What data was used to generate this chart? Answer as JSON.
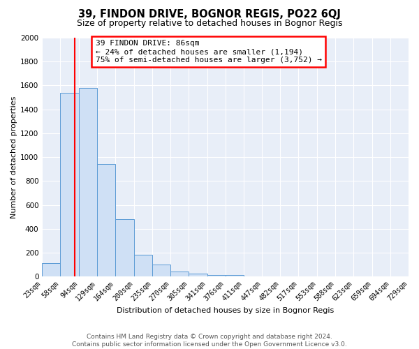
{
  "title": "39, FINDON DRIVE, BOGNOR REGIS, PO22 6QJ",
  "subtitle": "Size of property relative to detached houses in Bognor Regis",
  "xlabel": "Distribution of detached houses by size in Bognor Regis",
  "ylabel": "Number of detached properties",
  "bin_edges": [
    23,
    58,
    94,
    129,
    164,
    200,
    235,
    270,
    305,
    341,
    376,
    411,
    447,
    482,
    517,
    553,
    588,
    623,
    659,
    694,
    729
  ],
  "bar_heights": [
    110,
    1540,
    1580,
    940,
    480,
    185,
    100,
    40,
    25,
    15,
    15,
    0,
    0,
    0,
    0,
    0,
    0,
    0,
    0,
    0
  ],
  "bar_color": "#cfe0f5",
  "bar_edge_color": "#5b9bd5",
  "background_color": "#e8eef8",
  "grid_color": "#ffffff",
  "red_line_x": 86,
  "ylim": [
    0,
    2000
  ],
  "yticks": [
    0,
    200,
    400,
    600,
    800,
    1000,
    1200,
    1400,
    1600,
    1800,
    2000
  ],
  "annotation_line1": "39 FINDON DRIVE: 86sqm",
  "annotation_line2": "← 24% of detached houses are smaller (1,194)",
  "annotation_line3": "75% of semi-detached houses are larger (3,752) →",
  "footer_line1": "Contains HM Land Registry data © Crown copyright and database right 2024.",
  "footer_line2": "Contains public sector information licensed under the Open Government Licence v3.0.",
  "title_fontsize": 10.5,
  "subtitle_fontsize": 9,
  "axis_label_fontsize": 8,
  "tick_fontsize": 7,
  "annotation_fontsize": 8,
  "footer_fontsize": 6.5
}
